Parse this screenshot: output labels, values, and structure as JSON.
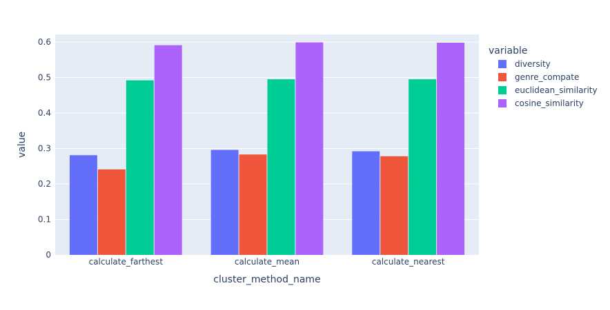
{
  "chart_data": {
    "type": "bar",
    "barmode": "group",
    "categories": [
      "calculate_farthest",
      "calculate_mean",
      "calculate_nearest"
    ],
    "series": [
      {
        "name": "diversity",
        "color": "#636efa",
        "values": [
          0.281,
          0.296,
          0.292
        ]
      },
      {
        "name": "genre_compate",
        "color": "#ef553b",
        "values": [
          0.241,
          0.283,
          0.278
        ]
      },
      {
        "name": "euclidean_similarity",
        "color": "#00cc96",
        "values": [
          0.492,
          0.495,
          0.495
        ]
      },
      {
        "name": "cosine_similarity",
        "color": "#ab63fa",
        "values": [
          0.591,
          0.599,
          0.598
        ]
      }
    ],
    "title": "",
    "xlabel": "cluster_method_name",
    "ylabel": "value",
    "ylim": [
      0,
      0.6213
    ],
    "yticks": [
      0,
      0.1,
      0.2,
      0.3,
      0.4,
      0.5,
      0.6
    ],
    "ytick_labels": [
      "0",
      "0.1",
      "0.2",
      "0.3",
      "0.4",
      "0.5",
      "0.6"
    ],
    "legend_title": "variable",
    "legend_position": "right",
    "grid": true,
    "plot_background": "#e5ecf6",
    "grid_color": "#ffffff"
  }
}
